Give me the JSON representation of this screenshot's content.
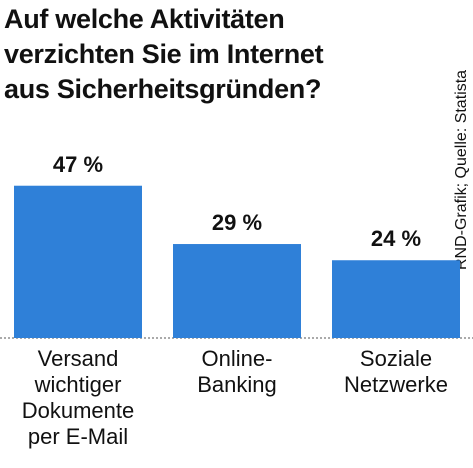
{
  "chart_data": {
    "type": "bar",
    "title": "Auf welche Aktivitäten\nverzichten Sie im Internet\naus Sicherheitsgründen?",
    "source": "RND-Grafik; Quelle: Statista",
    "categories": [
      "Versand\nwichtiger\nDokumente\nper E-Mail",
      "Online-\nBanking",
      "Soziale\nNetzwerke"
    ],
    "values": [
      47,
      29,
      24
    ],
    "value_labels": [
      "47 %",
      "29 %",
      "24 %"
    ],
    "color": "#2f80d8",
    "ylim": [
      0,
      50
    ]
  }
}
